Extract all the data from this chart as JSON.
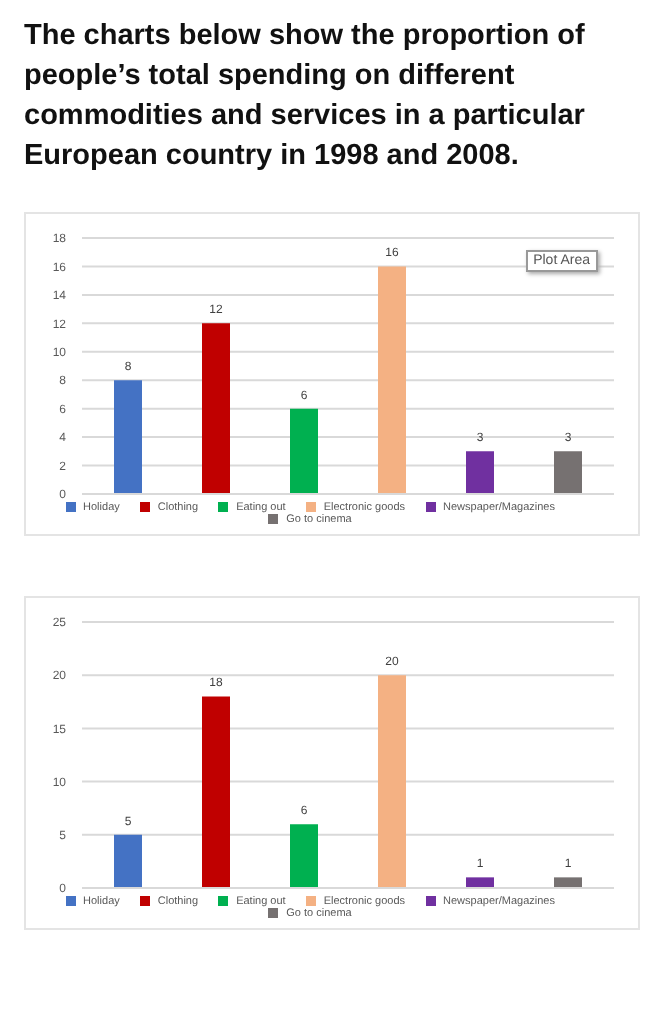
{
  "chart_data": [
    {
      "type": "bar",
      "title": "The charts below show the proportion of people’s total spending on different commodities and services in a particular European country in 1998 and 2008.",
      "categories": [
        null
      ],
      "series": [
        {
          "name": "Holiday",
          "color": "#4472c4",
          "values": [
            8
          ]
        },
        {
          "name": "Clothing",
          "color": "#c00000",
          "values": [
            12
          ]
        },
        {
          "name": "Eating out",
          "color": "#00b050",
          "values": [
            6
          ]
        },
        {
          "name": "Electronic goods",
          "color": "#f4b183",
          "values": [
            16
          ]
        },
        {
          "name": "Newspaper/Magazines",
          "color": "#7030a0",
          "values": [
            3
          ]
        },
        {
          "name": "Go to cinema",
          "color": "#767171",
          "values": [
            3
          ]
        }
      ],
      "ylim": [
        0,
        18
      ],
      "yticks": [
        0,
        2,
        4,
        6,
        8,
        10,
        12,
        14,
        16,
        18
      ],
      "grid": "y",
      "legend": "bottom",
      "data_labels": true,
      "annotations": [
        "Plot Area"
      ]
    },
    {
      "type": "bar",
      "categories": [
        null
      ],
      "series": [
        {
          "name": "Holiday",
          "color": "#4472c4",
          "values": [
            5
          ]
        },
        {
          "name": "Clothing",
          "color": "#c00000",
          "values": [
            18
          ]
        },
        {
          "name": "Eating out",
          "color": "#00b050",
          "values": [
            6
          ]
        },
        {
          "name": "Electronic goods",
          "color": "#f4b183",
          "values": [
            20
          ]
        },
        {
          "name": "Newspaper/Magazines",
          "color": "#7030a0",
          "values": [
            1
          ]
        },
        {
          "name": "Go to cinema",
          "color": "#767171",
          "values": [
            1
          ]
        }
      ],
      "ylim": [
        0,
        25
      ],
      "yticks": [
        0,
        5,
        10,
        15,
        20,
        25
      ],
      "grid": "y",
      "legend": "bottom",
      "data_labels": true
    }
  ]
}
